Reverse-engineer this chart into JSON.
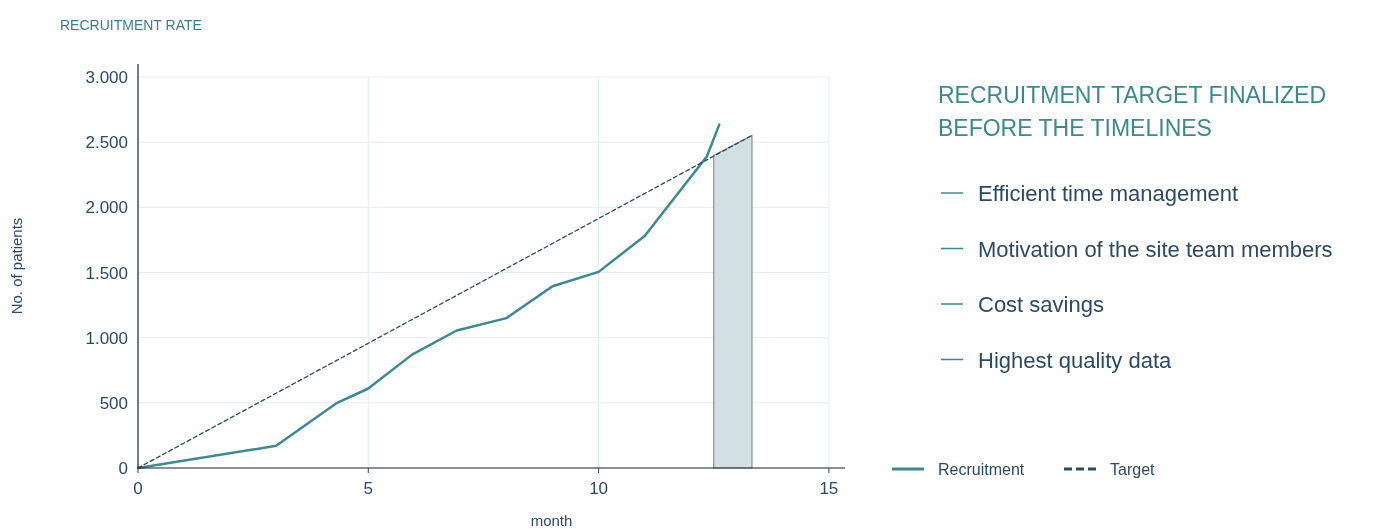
{
  "chart_data": {
    "type": "line",
    "title": "RECRUITMENT RATE",
    "xlabel": "month",
    "ylabel": "No. of patients",
    "xlim": [
      0,
      15.35
    ],
    "xticks": [
      0,
      5,
      10,
      15
    ],
    "ylim": [
      0,
      3100
    ],
    "yticks": [
      {
        "value": 0,
        "label": "0"
      },
      {
        "value": 500,
        "label": "500"
      },
      {
        "value": 1000,
        "label": "1.000"
      },
      {
        "value": 1500,
        "label": "1.500"
      },
      {
        "value": 2000,
        "label": "2.000"
      },
      {
        "value": 2500,
        "label": "2.500"
      },
      {
        "value": 3000,
        "label": "3.000"
      }
    ],
    "grid": true,
    "legend": "bottom right",
    "series": [
      {
        "type": "area",
        "color": "#d2e0e4",
        "x": [
          12.5,
          13.33
        ],
        "values": [
          2400,
          2552
        ]
      },
      {
        "name": "Recruitment",
        "color": "#3a8a90",
        "line_style": "solid",
        "x": [
          0,
          3,
          4.3,
          5,
          5.95,
          6.92,
          8,
          9,
          10,
          11,
          12.35,
          12.62
        ],
        "values": [
          0,
          170,
          495,
          610,
          870,
          1055,
          1150,
          1395,
          1505,
          1780,
          2390,
          2635
        ]
      },
      {
        "name": "Target",
        "color": "#2d4a63",
        "line_style": "dashed",
        "x": [
          0,
          13.33
        ],
        "values": [
          0,
          2552
        ]
      }
    ],
    "annotations": [
      "RECRUITMENT TARGET FINALIZED BEFORE THE TIMELINES",
      "Efficient time management",
      "Motivation of the site team members",
      "Cost savings",
      "Highest quality data"
    ]
  }
}
